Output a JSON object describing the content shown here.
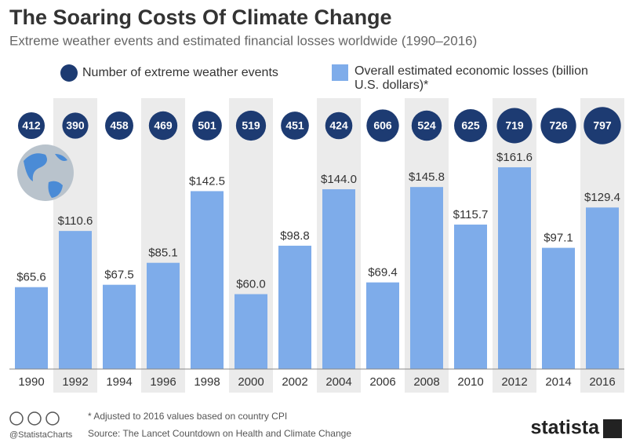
{
  "chart_data": {
    "type": "bar",
    "title": "The Soaring Costs Of Climate Change",
    "subtitle": "Extreme weather events and estimated financial losses worldwide (1990–2016)",
    "categories": [
      "1990",
      "1992",
      "1994",
      "1996",
      "1998",
      "2000",
      "2002",
      "2004",
      "2006",
      "2008",
      "2010",
      "2012",
      "2014",
      "2016"
    ],
    "series": [
      {
        "name": "Number of extreme weather events",
        "color": "#1d3b72",
        "values": [
          412,
          390,
          458,
          469,
          501,
          519,
          451,
          424,
          606,
          524,
          625,
          719,
          726,
          797
        ]
      },
      {
        "name": "Overall estimated economic losses (billion U.S. dollars)*",
        "color": "#7eacea",
        "values": [
          65.6,
          110.6,
          67.5,
          85.1,
          142.5,
          60.0,
          98.8,
          144.0,
          69.4,
          145.8,
          115.7,
          161.6,
          97.1,
          129.4
        ],
        "value_labels": [
          "$65.6",
          "$110.6",
          "$67.5",
          "$85.1",
          "$142.5",
          "$60.0",
          "$98.8",
          "$144.0",
          "$69.4",
          "$145.8",
          "$115.7",
          "$161.6",
          "$97.1",
          "$129.4"
        ]
      }
    ]
  },
  "footer": {
    "note": "* Adjusted to 2016 values based on country CPI",
    "source": "Source: The Lancet Countdown on Health and Climate Change",
    "handle": "@StatistaCharts",
    "brand": "statista"
  }
}
